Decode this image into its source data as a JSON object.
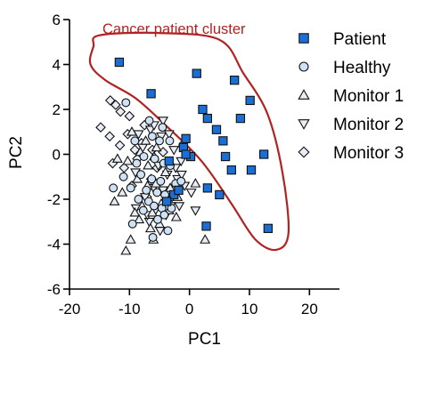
{
  "chart_data": {
    "type": "scatter",
    "xlabel": "PC1",
    "ylabel": "PC2",
    "xlim": [
      -20,
      25
    ],
    "ylim": [
      -6,
      6
    ],
    "xticks": [
      "-20",
      "-10",
      "0",
      "10",
      "20"
    ],
    "yticks": [
      "-6",
      "-4",
      "-2",
      "0",
      "2",
      "4",
      "6"
    ],
    "legend_position": "right",
    "grid": false,
    "annotation": {
      "text": "Cancer patient cluster",
      "color": "#b22222"
    },
    "cluster_outline": {
      "color": "#b22222",
      "path": [
        [
          -16,
          4.8
        ],
        [
          -15,
          5.3
        ],
        [
          -5,
          5.4
        ],
        [
          5,
          5.1
        ],
        [
          9,
          3.6
        ],
        [
          13,
          1.8
        ],
        [
          15.5,
          -0.8
        ],
        [
          16.5,
          -3.5
        ],
        [
          14.5,
          -4.25
        ],
        [
          11,
          -3.8
        ],
        [
          7,
          -2.2
        ],
        [
          2,
          -0.3
        ],
        [
          -4,
          1.3
        ],
        [
          -9,
          2.5
        ],
        [
          -14,
          3.3
        ],
        [
          -16.5,
          4.0
        ],
        [
          -16,
          4.8
        ]
      ]
    },
    "series": [
      {
        "name": "Patient",
        "marker": "square",
        "color": "#1a6fd6",
        "points": [
          [
            -11.7,
            4.1
          ],
          [
            -6.4,
            2.7
          ],
          [
            1.2,
            3.6
          ],
          [
            7.5,
            3.3
          ],
          [
            2.2,
            2.0
          ],
          [
            10.1,
            2.4
          ],
          [
            3.0,
            1.6
          ],
          [
            8.5,
            1.6
          ],
          [
            4.5,
            1.1
          ],
          [
            5.6,
            0.6
          ],
          [
            -0.6,
            0.7
          ],
          [
            0.2,
            -0.1
          ],
          [
            6.0,
            -0.1
          ],
          [
            12.4,
            0.0
          ],
          [
            -1.0,
            0.3
          ],
          [
            10.3,
            -0.7
          ],
          [
            7.0,
            -0.7
          ],
          [
            -3.4,
            -0.3
          ],
          [
            -0.6,
            0.0
          ],
          [
            3.0,
            -1.5
          ],
          [
            5.0,
            -1.8
          ],
          [
            -2.6,
            -1.8
          ],
          [
            -3.8,
            -2.1
          ],
          [
            13.1,
            -3.3
          ],
          [
            2.8,
            -3.2
          ],
          [
            -1.8,
            -1.6
          ]
        ]
      },
      {
        "name": "Healthy",
        "marker": "circle",
        "color": "#cfe2f5",
        "points": [
          [
            -10.6,
            2.3
          ],
          [
            -6.7,
            1.5
          ],
          [
            -4.5,
            1.2
          ],
          [
            -6.2,
            0.8
          ],
          [
            -3.3,
            0.6
          ],
          [
            -9.1,
            0.6
          ],
          [
            -5.0,
            0.6
          ],
          [
            -7.6,
            -0.1
          ],
          [
            -5.8,
            -0.2
          ],
          [
            -4.3,
            -0.4
          ],
          [
            -3.2,
            -0.5
          ],
          [
            -8.1,
            -0.9
          ],
          [
            -6.3,
            -1.1
          ],
          [
            -4.8,
            -1.2
          ],
          [
            -2.3,
            -1.3
          ],
          [
            -9.8,
            -1.5
          ],
          [
            -7.2,
            -1.6
          ],
          [
            -5.4,
            -1.7
          ],
          [
            -4.1,
            -1.8
          ],
          [
            -8.5,
            -2.0
          ],
          [
            -6.8,
            -2.1
          ],
          [
            -5.9,
            -2.3
          ],
          [
            -4.6,
            -2.4
          ],
          [
            -3.0,
            -2.4
          ],
          [
            -7.7,
            -2.5
          ],
          [
            -12.7,
            -1.5
          ],
          [
            -11.0,
            -1.0
          ],
          [
            -5.3,
            -2.9
          ],
          [
            -9.5,
            -3.1
          ],
          [
            -6.1,
            -3.7
          ],
          [
            -4.2,
            -2.7
          ],
          [
            -1.1,
            0.4
          ],
          [
            -1.4,
            -1.2
          ],
          [
            -8.8,
            -0.4
          ],
          [
            -3.6,
            -3.4
          ]
        ]
      },
      {
        "name": "Monitor 1",
        "marker": "triangle-up",
        "color": "#e8eef7",
        "points": [
          [
            -9.6,
            1.0
          ],
          [
            -7.3,
            0.6
          ],
          [
            -5.5,
            0.3
          ],
          [
            -10.3,
            -0.3
          ],
          [
            -6.9,
            -0.5
          ],
          [
            -4.0,
            -0.8
          ],
          [
            -8.7,
            -1.1
          ],
          [
            -5.6,
            -1.3
          ],
          [
            -12.5,
            -2.1
          ],
          [
            -7.9,
            -2.3
          ],
          [
            -6.2,
            -2.6
          ],
          [
            -3.4,
            -2.5
          ],
          [
            -8.4,
            -2.9
          ],
          [
            -5.0,
            -3.1
          ],
          [
            -9.8,
            -3.8
          ],
          [
            -10.6,
            -4.3
          ],
          [
            -6.5,
            -3.3
          ],
          [
            -2.2,
            -2.8
          ],
          [
            -11.2,
            -1.7
          ],
          [
            -4.7,
            -2.2
          ],
          [
            -3.2,
            -1.5
          ],
          [
            -7.0,
            -1.4
          ],
          [
            -9.1,
            -2.6
          ],
          [
            -5.9,
            -0.1
          ],
          [
            1.0,
            -1.3
          ],
          [
            -2.0,
            -1.9
          ],
          [
            2.6,
            -3.8
          ],
          [
            -12.0,
            -0.2
          ],
          [
            -8.2,
            0.1
          ],
          [
            -6.0,
            -3.8
          ]
        ]
      },
      {
        "name": "Monitor 2",
        "marker": "triangle-down",
        "color": "#e8eef7",
        "points": [
          [
            -8.5,
            0.9
          ],
          [
            -6.5,
            1.1
          ],
          [
            -4.7,
            0.8
          ],
          [
            -3.4,
            0.9
          ],
          [
            -2.6,
            0.2
          ],
          [
            -1.4,
            -0.3
          ],
          [
            -7.8,
            0.3
          ],
          [
            -5.2,
            -0.5
          ],
          [
            -3.7,
            -0.9
          ],
          [
            -2.0,
            -1.1
          ],
          [
            -9.0,
            -0.8
          ],
          [
            -6.0,
            -1.5
          ],
          [
            -4.4,
            -1.6
          ],
          [
            -2.9,
            -1.9
          ],
          [
            -7.4,
            -1.9
          ],
          [
            -5.7,
            -2.5
          ],
          [
            -3.9,
            -2.7
          ],
          [
            -1.7,
            -2.3
          ],
          [
            -8.9,
            -2.4
          ],
          [
            -6.7,
            -3.0
          ],
          [
            -4.9,
            -3.4
          ],
          [
            -3.1,
            -2.3
          ],
          [
            -0.8,
            -1.4
          ],
          [
            1.0,
            -2.5
          ],
          [
            0.3,
            -1.7
          ],
          [
            -1.3,
            -0.9
          ],
          [
            -7.0,
            -2.7
          ],
          [
            -2.3,
            -0.6
          ],
          [
            -5.9,
            1.3
          ],
          [
            -4.4,
            1.5
          ]
        ]
      },
      {
        "name": "Monitor 3",
        "marker": "diamond",
        "color": "#e8eef7",
        "points": [
          [
            -13.2,
            2.4
          ],
          [
            -12.3,
            2.2
          ],
          [
            -10.0,
            1.7
          ],
          [
            -7.5,
            1.3
          ],
          [
            -14.8,
            1.2
          ],
          [
            -13.3,
            0.8
          ],
          [
            -11.6,
            0.4
          ],
          [
            -8.0,
            0.5
          ],
          [
            -6.2,
            0.2
          ],
          [
            -12.8,
            -0.4
          ],
          [
            -10.9,
            -0.6
          ],
          [
            -9.6,
            -1.4
          ],
          [
            -7.1,
            -1.9
          ],
          [
            -5.4,
            -0.6
          ],
          [
            -9.1,
            0.2
          ],
          [
            -6.4,
            -1.1
          ],
          [
            -11.5,
            1.9
          ],
          [
            -8.7,
            -0.2
          ],
          [
            -4.4,
            0.1
          ],
          [
            -10.3,
            0.9
          ]
        ]
      }
    ]
  }
}
